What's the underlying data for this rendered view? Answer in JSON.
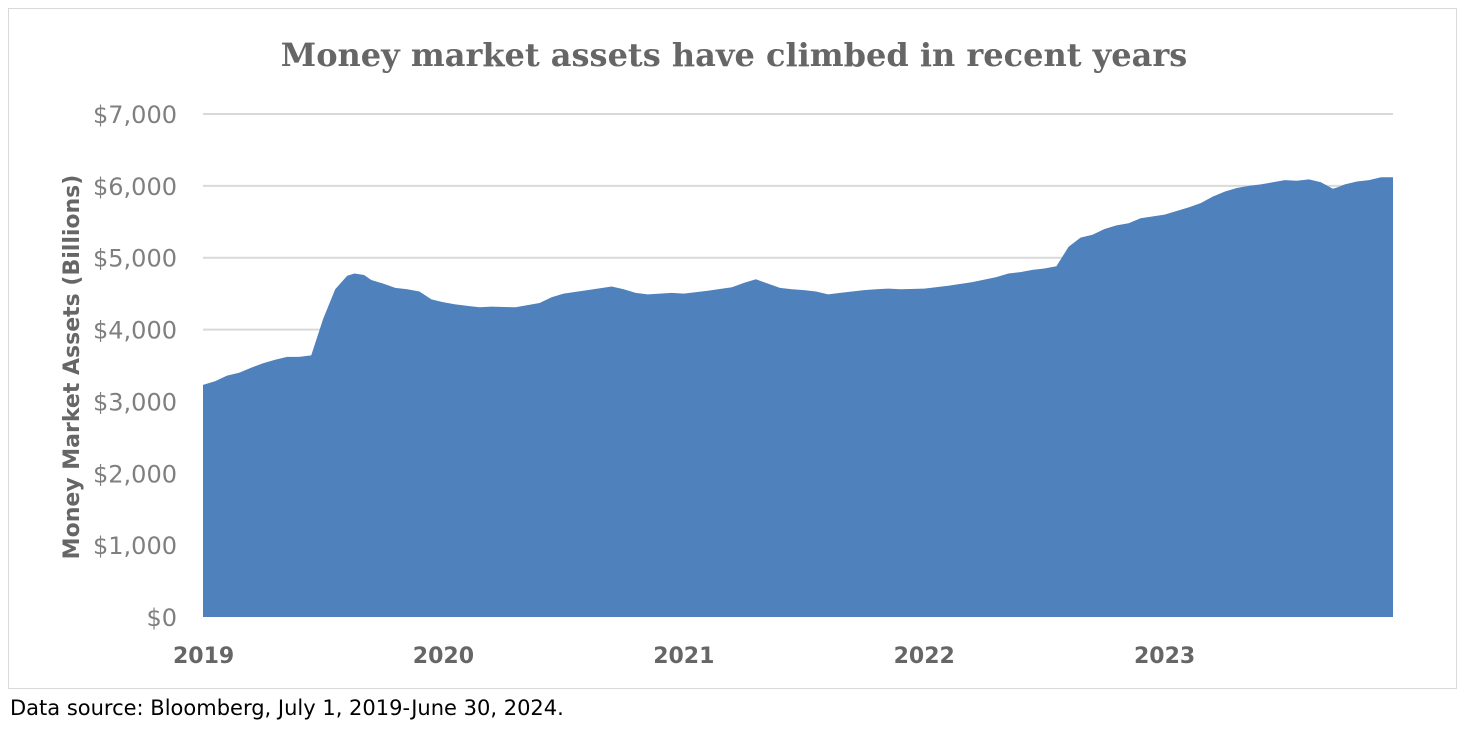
{
  "chart_data": {
    "type": "area",
    "title": "Money market assets have climbed in recent years",
    "ylabel": "Money Market Assets (Billions)",
    "xlabel": "",
    "ylim": [
      0,
      7000
    ],
    "xlim": [
      2019.0,
      2023.95
    ],
    "y_ticks": [
      "$0",
      "$1,000",
      "$2,000",
      "$3,000",
      "$4,000",
      "$5,000",
      "$6,000",
      "$7,000"
    ],
    "y_tick_values": [
      0,
      1000,
      2000,
      3000,
      4000,
      5000,
      6000,
      7000
    ],
    "x_ticks": [
      "2019",
      "2020",
      "2021",
      "2022",
      "2023"
    ],
    "x_tick_values": [
      2019,
      2020,
      2021,
      2022,
      2023
    ],
    "grid": "horizontal",
    "legend": "none",
    "series": [
      {
        "color": "#4f81bd",
        "x": [
          2019.0,
          2019.05,
          2019.1,
          2019.15,
          2019.2,
          2019.25,
          2019.3,
          2019.35,
          2019.4,
          2019.45,
          2019.5,
          2019.55,
          2019.6,
          2019.63,
          2019.67,
          2019.7,
          2019.75,
          2019.8,
          2019.85,
          2019.9,
          2019.95,
          2020.0,
          2020.05,
          2020.1,
          2020.15,
          2020.2,
          2020.3,
          2020.4,
          2020.45,
          2020.5,
          2020.6,
          2020.7,
          2020.75,
          2020.8,
          2020.85,
          2020.9,
          2020.95,
          2021.0,
          2021.1,
          2021.2,
          2021.25,
          2021.3,
          2021.4,
          2021.45,
          2021.5,
          2021.55,
          2021.6,
          2021.65,
          2021.7,
          2021.75,
          2021.8,
          2021.85,
          2021.9,
          2022.0,
          2022.1,
          2022.2,
          2022.3,
          2022.35,
          2022.4,
          2022.45,
          2022.5,
          2022.55,
          2022.6,
          2022.65,
          2022.7,
          2022.75,
          2022.8,
          2022.85,
          2022.9,
          2023.0,
          2023.05,
          2023.1,
          2023.15,
          2023.2,
          2023.25,
          2023.3,
          2023.35,
          2023.4,
          2023.45,
          2023.5,
          2023.55,
          2023.6,
          2023.65,
          2023.7,
          2023.72,
          2023.75,
          2023.8,
          2023.85,
          2023.9,
          2023.95
        ],
        "values": [
          3230,
          3280,
          3360,
          3400,
          3470,
          3530,
          3580,
          3620,
          3620,
          3640,
          4150,
          4560,
          4750,
          4780,
          4760,
          4690,
          4640,
          4580,
          4560,
          4530,
          4420,
          4380,
          4350,
          4330,
          4310,
          4320,
          4310,
          4370,
          4450,
          4500,
          4550,
          4600,
          4560,
          4510,
          4490,
          4500,
          4510,
          4500,
          4540,
          4590,
          4650,
          4700,
          4580,
          4560,
          4550,
          4530,
          4490,
          4510,
          4530,
          4550,
          4560,
          4570,
          4560,
          4570,
          4610,
          4660,
          4730,
          4780,
          4800,
          4830,
          4850,
          4880,
          5150,
          5280,
          5320,
          5400,
          5450,
          5480,
          5550,
          5600,
          5650,
          5700,
          5760,
          5850,
          5920,
          5970,
          6000,
          6020,
          6050,
          6080,
          6070,
          6090,
          6050,
          5960,
          5980,
          6020,
          6060,
          6080,
          6120,
          6120
        ]
      }
    ]
  },
  "source_note": "Data source: Bloomberg, July 1, 2019-June 30, 2024."
}
